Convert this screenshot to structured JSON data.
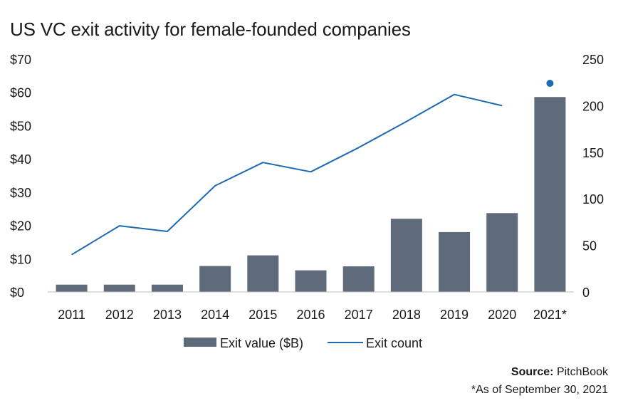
{
  "chart_data": {
    "type": "bar",
    "title": "US VC exit activity for female-founded companies",
    "categories": [
      "2011",
      "2012",
      "2013",
      "2014",
      "2015",
      "2016",
      "2017",
      "2018",
      "2019",
      "2020",
      "2021*"
    ],
    "series": [
      {
        "name": "Exit value ($B)",
        "type": "bar",
        "axis": "left",
        "color": "#5f6b7a",
        "values": [
          2.2,
          2.2,
          2.2,
          7.8,
          11.0,
          6.5,
          7.7,
          22.0,
          18.0,
          23.7,
          58.6
        ]
      },
      {
        "name": "Exit count",
        "type": "line",
        "axis": "right",
        "color": "#1f6bb0",
        "values": [
          40,
          71,
          65,
          114,
          139,
          129,
          null,
          null,
          212,
          200,
          224
        ]
      }
    ],
    "line_trend_note_values": [
      40,
      71,
      65,
      114,
      139,
      129,
      155,
      183,
      212,
      200
    ],
    "left_axis": {
      "ylim": [
        0,
        70
      ],
      "ticks": [
        "$0",
        "$10",
        "$20",
        "$30",
        "$40",
        "$50",
        "$60",
        "$70"
      ],
      "tick_values": [
        0,
        10,
        20,
        30,
        40,
        50,
        60,
        70
      ]
    },
    "right_axis": {
      "ylim": [
        0,
        250
      ],
      "ticks": [
        "0",
        "50",
        "100",
        "150",
        "200",
        "250"
      ],
      "tick_values": [
        0,
        50,
        100,
        150,
        200,
        250
      ]
    },
    "legend": {
      "placement": "bottom-center",
      "items": [
        "Exit value ($B)",
        "Exit count"
      ]
    },
    "grid": false
  },
  "footer": {
    "source_label": "Source:",
    "source_value": "PitchBook",
    "note": "*As of September 30, 2021"
  }
}
